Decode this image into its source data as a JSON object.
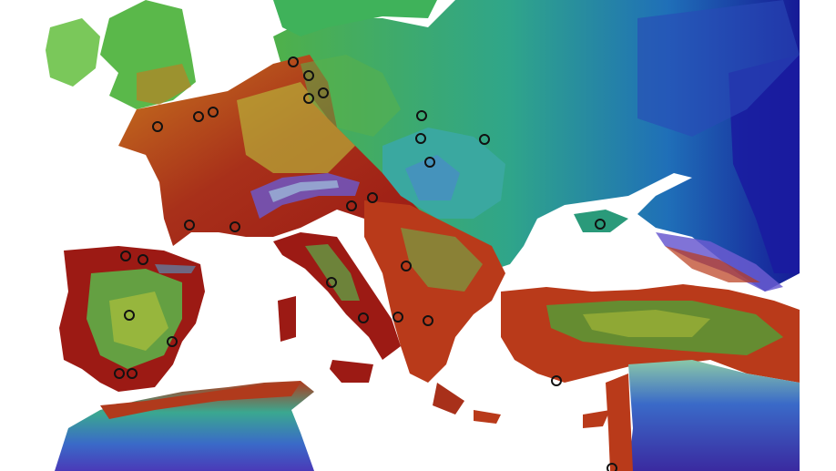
{
  "map": {
    "colors": {
      "sea": "#ffffff",
      "lowland_red": "#9c1a14",
      "lowland_orange": "#c8781e",
      "plain_yellow": "#b9c43a",
      "plain_green": "#4aa83a",
      "steppe_teal": "#2aa88a",
      "east_blue": "#1a4fb0",
      "deep_blue": "#1a1a9a",
      "alpine_purple": "#5a4ac8",
      "marker_stroke": "#111111"
    },
    "marker_icon": "circle-outline-icon",
    "site_count": 32
  }
}
